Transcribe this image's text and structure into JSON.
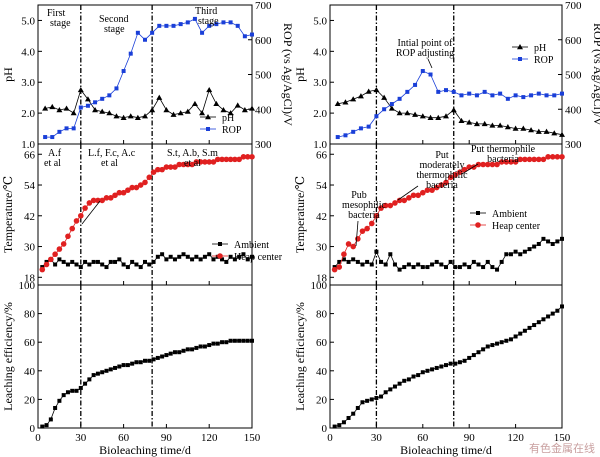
{
  "chart_data": [
    {
      "type": "line",
      "panel": "left-top",
      "xlabel": "",
      "ylabel": "pH",
      "y2label": "ROP (vs Ag/AgCl)/V",
      "xlim": [
        0,
        150
      ],
      "ylim": [
        1.0,
        5.5
      ],
      "y2lim": [
        300,
        700
      ],
      "yticks": [
        "1.0",
        "2.0",
        "3.0",
        "4.0",
        "5.0"
      ],
      "y2ticks": [
        "300",
        "400",
        "500",
        "600",
        "700"
      ],
      "series": [
        {
          "name": "pH",
          "marker": "triangle",
          "color": "#000000",
          "x": [
            5,
            10,
            15,
            20,
            25,
            30,
            35,
            40,
            45,
            50,
            55,
            60,
            65,
            70,
            75,
            80,
            85,
            90,
            95,
            100,
            105,
            110,
            115,
            120,
            125,
            130,
            135,
            140,
            145,
            150
          ],
          "y": [
            2.15,
            2.2,
            2.1,
            2.15,
            2.0,
            2.75,
            2.45,
            2.1,
            2.05,
            2.0,
            1.9,
            1.85,
            1.9,
            1.85,
            1.9,
            2.1,
            2.5,
            2.1,
            1.95,
            2.0,
            2.05,
            2.3,
            2.0,
            2.75,
            2.3,
            2.1,
            2.0,
            2.25,
            2.1,
            2.15
          ]
        },
        {
          "name": "ROP",
          "marker": "square",
          "color": "#1a3fd8",
          "axis": "right",
          "x": [
            5,
            10,
            15,
            20,
            25,
            30,
            35,
            40,
            45,
            50,
            55,
            60,
            65,
            70,
            75,
            80,
            85,
            90,
            95,
            100,
            105,
            110,
            115,
            120,
            125,
            130,
            135,
            140,
            145,
            150
          ],
          "y": [
            320,
            320,
            335,
            345,
            345,
            405,
            410,
            420,
            430,
            440,
            460,
            510,
            560,
            620,
            600,
            620,
            640,
            640,
            640,
            645,
            650,
            660,
            620,
            640,
            645,
            650,
            650,
            640,
            610,
            615
          ]
        }
      ]
    },
    {
      "type": "line",
      "panel": "left-middle",
      "xlabel": "",
      "ylabel": "Temperature/℃",
      "xlim": [
        0,
        150
      ],
      "ylim": [
        15,
        70
      ],
      "yticks": [
        "18",
        "30",
        "42",
        "54",
        "66"
      ],
      "series": [
        {
          "name": "Ambient",
          "marker": "square",
          "color": "#000000",
          "x": [
            3,
            6,
            9,
            12,
            15,
            18,
            21,
            24,
            27,
            30,
            33,
            36,
            39,
            42,
            45,
            48,
            51,
            54,
            57,
            60,
            63,
            66,
            69,
            72,
            75,
            78,
            81,
            84,
            87,
            90,
            93,
            96,
            99,
            102,
            105,
            108,
            111,
            114,
            117,
            120,
            123,
            126,
            129,
            132,
            135,
            138,
            141,
            144,
            147,
            150
          ],
          "y": [
            22,
            24,
            25,
            23,
            25,
            24,
            23,
            24,
            23,
            22,
            24,
            23,
            24,
            24,
            23,
            22,
            24,
            24,
            25,
            23,
            22,
            24,
            23,
            22,
            24,
            23,
            24,
            26,
            27,
            25,
            26,
            25,
            26,
            27,
            26,
            25,
            26,
            25,
            26,
            27,
            25,
            26,
            25,
            24,
            26,
            25,
            26,
            27,
            25,
            26
          ]
        },
        {
          "name": "Heap center",
          "marker": "circle",
          "color": "#e02020",
          "x": [
            3,
            6,
            9,
            12,
            15,
            18,
            21,
            24,
            27,
            30,
            33,
            36,
            39,
            42,
            45,
            48,
            51,
            54,
            57,
            60,
            63,
            66,
            69,
            72,
            75,
            78,
            81,
            84,
            87,
            90,
            93,
            96,
            99,
            102,
            105,
            108,
            111,
            114,
            117,
            120,
            123,
            126,
            129,
            132,
            135,
            138,
            141,
            144,
            147,
            150
          ],
          "y": [
            21,
            23,
            25,
            27,
            29,
            31,
            34,
            37,
            40,
            42,
            45,
            47,
            48,
            48,
            48,
            49,
            49,
            50,
            51,
            51,
            52,
            53,
            53,
            54,
            55,
            57,
            59,
            60,
            60,
            61,
            61,
            61,
            62,
            62,
            62,
            62,
            63,
            63,
            63,
            63,
            63,
            64,
            64,
            64,
            64,
            64,
            64,
            65,
            65,
            65
          ]
        }
      ],
      "annotations": [
        "A.f",
        "et al",
        "L.f, F.c, A.c",
        "et al",
        "S.t, A.b, S.m",
        "et al"
      ]
    },
    {
      "type": "line",
      "panel": "left-bottom",
      "xlabel": "Bioleaching time/d",
      "ylabel": "Leaching efficiency/%",
      "xlim": [
        0,
        150
      ],
      "ylim": [
        0,
        100
      ],
      "xticks": [
        "0",
        "30",
        "60",
        "90",
        "120",
        "150"
      ],
      "yticks": [
        "0",
        "20",
        "40",
        "60",
        "80",
        "100"
      ],
      "series": [
        {
          "name": "Leaching efficiency",
          "marker": "square",
          "color": "#000000",
          "x": [
            3,
            6,
            9,
            12,
            15,
            18,
            21,
            24,
            27,
            30,
            33,
            36,
            39,
            42,
            45,
            48,
            51,
            54,
            57,
            60,
            63,
            66,
            69,
            72,
            75,
            78,
            81,
            84,
            87,
            90,
            93,
            96,
            99,
            102,
            105,
            108,
            111,
            114,
            117,
            120,
            123,
            126,
            129,
            132,
            135,
            138,
            141,
            144,
            147,
            150
          ],
          "y": [
            1,
            2,
            6,
            14,
            19,
            23,
            25,
            26,
            26,
            28,
            31,
            34,
            37,
            38,
            39,
            40,
            41,
            42,
            43,
            44,
            44,
            45,
            46,
            46,
            47,
            47,
            48,
            49,
            50,
            51,
            52,
            53,
            53,
            54,
            55,
            55,
            56,
            57,
            57,
            58,
            59,
            59,
            60,
            60,
            61,
            61,
            61,
            61,
            61,
            61
          ]
        }
      ]
    },
    {
      "type": "line",
      "panel": "right-top",
      "xlabel": "",
      "ylabel": "pH",
      "y2label": "ROP (vs Ag/AgCl)/V",
      "xlim": [
        0,
        150
      ],
      "ylim": [
        1.0,
        5.5
      ],
      "y2lim": [
        300,
        700
      ],
      "yticks": [
        "1.0",
        "2.0",
        "3.0",
        "4.0",
        "5.0"
      ],
      "y2ticks": [
        "300",
        "400",
        "500",
        "600",
        "700"
      ],
      "series": [
        {
          "name": "pH",
          "marker": "triangle",
          "color": "#000000",
          "x": [
            5,
            10,
            15,
            20,
            25,
            30,
            35,
            40,
            45,
            50,
            55,
            60,
            65,
            70,
            75,
            80,
            85,
            90,
            95,
            100,
            105,
            110,
            115,
            120,
            125,
            130,
            135,
            140,
            145,
            150
          ],
          "y": [
            2.3,
            2.35,
            2.45,
            2.55,
            2.7,
            2.75,
            2.5,
            2.15,
            2.0,
            2.0,
            1.95,
            1.9,
            1.85,
            1.85,
            1.9,
            2.1,
            1.75,
            1.7,
            1.65,
            1.65,
            1.6,
            1.6,
            1.55,
            1.5,
            1.5,
            1.45,
            1.4,
            1.4,
            1.35,
            1.3
          ]
        },
        {
          "name": "ROP",
          "marker": "square",
          "color": "#1a3fd8",
          "axis": "right",
          "x": [
            5,
            10,
            15,
            20,
            25,
            30,
            35,
            40,
            45,
            50,
            55,
            60,
            65,
            70,
            75,
            80,
            85,
            90,
            95,
            100,
            105,
            110,
            115,
            120,
            125,
            130,
            135,
            140,
            145,
            150
          ],
          "y": [
            320,
            325,
            335,
            345,
            350,
            380,
            400,
            415,
            430,
            450,
            470,
            510,
            500,
            450,
            455,
            450,
            440,
            445,
            440,
            450,
            440,
            445,
            430,
            440,
            435,
            440,
            445,
            440,
            440,
            445
          ]
        }
      ],
      "annotations": [
        "Intial point of",
        "ROP adjusting"
      ]
    },
    {
      "type": "line",
      "panel": "right-middle",
      "xlabel": "",
      "ylabel": "Temperature/℃",
      "xlim": [
        0,
        150
      ],
      "ylim": [
        15,
        70
      ],
      "yticks": [
        "18",
        "30",
        "42",
        "54",
        "66"
      ],
      "series": [
        {
          "name": "Ambient",
          "marker": "square",
          "color": "#000000",
          "x": [
            3,
            6,
            9,
            12,
            15,
            18,
            21,
            24,
            27,
            30,
            33,
            36,
            39,
            42,
            45,
            48,
            51,
            54,
            57,
            60,
            63,
            66,
            69,
            72,
            75,
            78,
            81,
            84,
            87,
            90,
            93,
            96,
            99,
            102,
            105,
            108,
            111,
            114,
            117,
            120,
            123,
            126,
            129,
            132,
            135,
            138,
            141,
            144,
            147,
            150
          ],
          "y": [
            22,
            24,
            25,
            24,
            25,
            24,
            23,
            24,
            23,
            28,
            24,
            23,
            27,
            23,
            21,
            22,
            23,
            22,
            23,
            22,
            22,
            23,
            24,
            23,
            22,
            24,
            22,
            22,
            23,
            22,
            24,
            23,
            22,
            24,
            22,
            21,
            24,
            27,
            27,
            28,
            27,
            28,
            29,
            30,
            31,
            33,
            32,
            31,
            32,
            33
          ]
        },
        {
          "name": "Heap center",
          "marker": "circle",
          "color": "#e02020",
          "x": [
            3,
            6,
            9,
            12,
            15,
            18,
            21,
            24,
            27,
            30,
            33,
            36,
            39,
            42,
            45,
            48,
            51,
            54,
            57,
            60,
            63,
            66,
            69,
            72,
            75,
            78,
            81,
            84,
            87,
            90,
            93,
            96,
            99,
            102,
            105,
            108,
            111,
            114,
            117,
            120,
            123,
            126,
            129,
            132,
            135,
            138,
            141,
            144,
            147,
            150
          ],
          "y": [
            21,
            22,
            27,
            31,
            30,
            33,
            36,
            37,
            39,
            42,
            45,
            46,
            46,
            47,
            48,
            48,
            49,
            50,
            50,
            51,
            52,
            52,
            53,
            54,
            55,
            57,
            58,
            59,
            60,
            61,
            61,
            62,
            62,
            62,
            62,
            62,
            63,
            63,
            63,
            63,
            64,
            64,
            64,
            64,
            64,
            64,
            65,
            65,
            65,
            65
          ]
        }
      ],
      "annotations": [
        "Pub",
        "mesophilic",
        "bacteria",
        "Put",
        "moderately",
        "thermophilic",
        "bacteria",
        "Put thermophile",
        "bacteria"
      ]
    },
    {
      "type": "line",
      "panel": "right-bottom",
      "xlabel": "Bioleaching time/d",
      "ylabel": "Leaching efficiency/%",
      "xlim": [
        0,
        150
      ],
      "ylim": [
        0,
        100
      ],
      "xticks": [
        "0",
        "30",
        "60",
        "90",
        "120",
        "150"
      ],
      "yticks": [
        "0",
        "20",
        "40",
        "60",
        "80",
        "100"
      ],
      "series": [
        {
          "name": "Leaching efficiency",
          "marker": "square",
          "color": "#000000",
          "x": [
            3,
            6,
            9,
            12,
            15,
            18,
            21,
            24,
            27,
            30,
            33,
            36,
            39,
            42,
            45,
            48,
            51,
            54,
            57,
            60,
            63,
            66,
            69,
            72,
            75,
            78,
            81,
            84,
            87,
            90,
            93,
            96,
            99,
            102,
            105,
            108,
            111,
            114,
            117,
            120,
            123,
            126,
            129,
            132,
            135,
            138,
            141,
            144,
            147,
            150
          ],
          "y": [
            1,
            2,
            4,
            7,
            10,
            14,
            18,
            19,
            20,
            21,
            22,
            25,
            27,
            29,
            31,
            33,
            34,
            36,
            37,
            39,
            40,
            41,
            42,
            43,
            44,
            45,
            45,
            46,
            47,
            49,
            51,
            53,
            55,
            57,
            58,
            59,
            60,
            61,
            62,
            64,
            66,
            68,
            70,
            72,
            74,
            76,
            78,
            80,
            82,
            85
          ]
        }
      ]
    }
  ],
  "stage_labels": [
    "First",
    "stage",
    "Second",
    "stage",
    "Third",
    "stage"
  ],
  "watermark": "有色金属在线"
}
